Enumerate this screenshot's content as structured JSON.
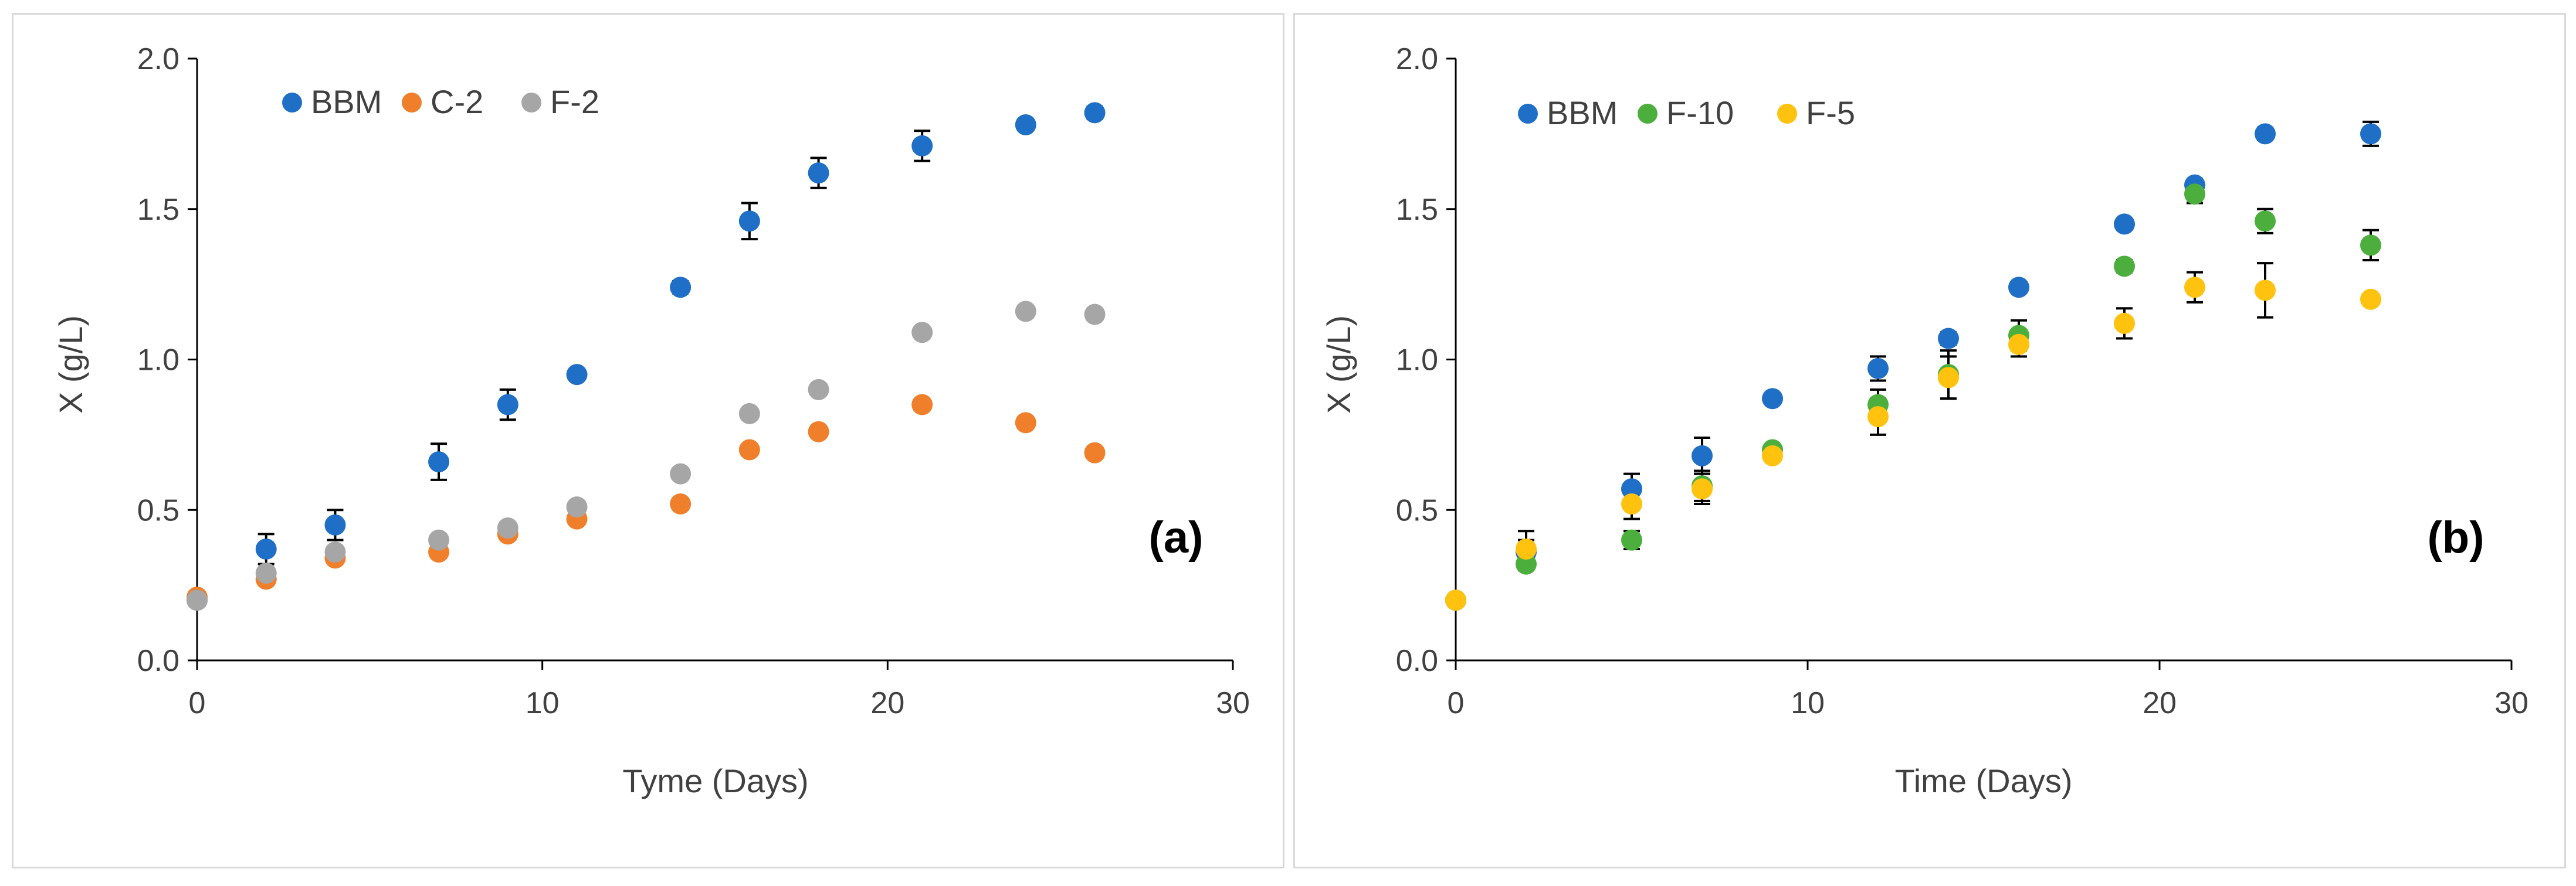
{
  "chart_data": [
    {
      "type": "scatter",
      "panel_label": "(a)",
      "xlabel": "Tyme (Days)",
      "ylabel": "X (g/L)",
      "xlim": [
        0,
        30
      ],
      "ylim": [
        0,
        2.0
      ],
      "x_ticks": [
        "0",
        "10",
        "20",
        "30"
      ],
      "y_ticks": [
        "0.0",
        "0.5",
        "1.0",
        "1.5",
        "2.0"
      ],
      "legend_position": "top-left",
      "series": [
        {
          "name": "BBM",
          "color": "#1f6fc6",
          "x": [
            0,
            2,
            4,
            7,
            9,
            11,
            14,
            16,
            18,
            21,
            24,
            26
          ],
          "values": [
            0.2,
            0.37,
            0.45,
            0.66,
            0.85,
            0.95,
            1.24,
            1.46,
            1.62,
            1.71,
            1.78,
            1.82
          ],
          "errors": [
            0.01,
            0.05,
            0.05,
            0.06,
            0.05,
            0.01,
            0.02,
            0.06,
            0.05,
            0.05,
            0.01,
            0.02
          ]
        },
        {
          "name": "C-2",
          "color": "#f07f2b",
          "x": [
            0,
            2,
            4,
            7,
            9,
            11,
            14,
            16,
            18,
            21,
            24,
            26
          ],
          "values": [
            0.21,
            0.27,
            0.34,
            0.36,
            0.42,
            0.47,
            0.52,
            0.7,
            0.76,
            0.85,
            0.79,
            0.69
          ],
          "errors": []
        },
        {
          "name": "F-2",
          "color": "#a6a6a6",
          "x": [
            0,
            2,
            4,
            7,
            9,
            11,
            14,
            16,
            18,
            21,
            24,
            26
          ],
          "values": [
            0.2,
            0.29,
            0.36,
            0.4,
            0.44,
            0.51,
            0.62,
            0.82,
            0.9,
            1.09,
            1.16,
            1.15
          ],
          "errors": []
        }
      ]
    },
    {
      "type": "scatter",
      "panel_label": "(b)",
      "xlabel": "Time (Days)",
      "ylabel": "X (g/L)",
      "xlim": [
        0,
        30
      ],
      "ylim": [
        0,
        2.0
      ],
      "x_ticks": [
        "0",
        "10",
        "20",
        "30"
      ],
      "y_ticks": [
        "0.0",
        "0.5",
        "1.0",
        "1.5",
        "2.0"
      ],
      "legend_position": "top-left",
      "series": [
        {
          "name": "BBM",
          "color": "#1f6fc6",
          "x": [
            0,
            2,
            5,
            7,
            9,
            12,
            14,
            16,
            19,
            21,
            23,
            26
          ],
          "values": [
            0.2,
            0.36,
            0.57,
            0.68,
            0.87,
            0.97,
            1.07,
            1.24,
            1.45,
            1.58,
            1.75,
            1.75
          ],
          "errors": [
            0.01,
            0.04,
            0.05,
            0.06,
            0.01,
            0.04,
            0.02,
            0.01,
            0.01,
            0.02,
            0.02,
            0.04
          ]
        },
        {
          "name": "F-10",
          "color": "#4caf3d",
          "x": [
            0,
            2,
            5,
            7,
            9,
            12,
            14,
            16,
            19,
            21,
            23,
            26
          ],
          "values": [
            0.2,
            0.32,
            0.4,
            0.58,
            0.7,
            0.85,
            0.95,
            1.08,
            1.31,
            1.55,
            1.46,
            1.38
          ],
          "errors": [
            0.01,
            0.02,
            0.03,
            0.05,
            0.01,
            0.05,
            0.08,
            0.05,
            0.02,
            0.03,
            0.04,
            0.05
          ]
        },
        {
          "name": "F-5",
          "color": "#ffc20e",
          "x": [
            0,
            2,
            5,
            7,
            9,
            12,
            14,
            16,
            19,
            21,
            23,
            26
          ],
          "values": [
            0.2,
            0.37,
            0.52,
            0.57,
            0.68,
            0.81,
            0.94,
            1.05,
            1.12,
            1.24,
            1.23,
            1.2
          ],
          "errors": [
            0.01,
            0.06,
            0.05,
            0.05,
            0.01,
            0.06,
            0.07,
            0.04,
            0.05,
            0.05,
            0.09,
            0.01
          ]
        }
      ]
    }
  ]
}
